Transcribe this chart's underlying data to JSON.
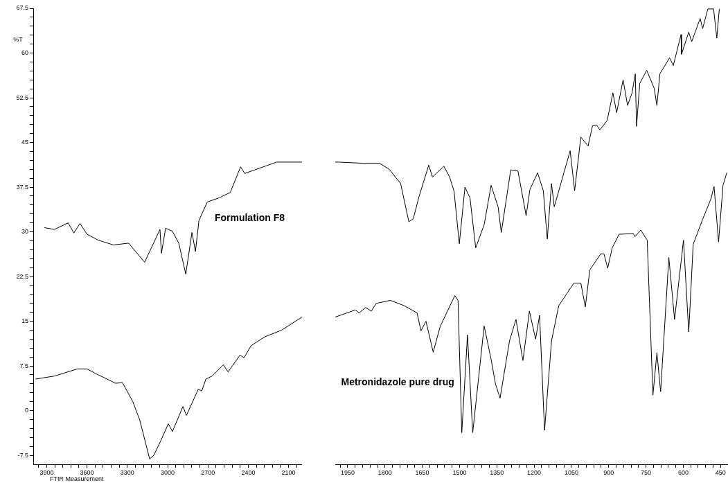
{
  "chart_data": [
    {
      "type": "line",
      "ylabel": "%T",
      "annotations": [
        "FTIR Measurement"
      ],
      "legend": false,
      "xlim": [
        4000,
        2000
      ],
      "ylim": [
        -9,
        67.5
      ],
      "xticks": [
        {
          "value": 3960,
          "label": null
        },
        3900,
        {
          "value": 3840,
          "label": null
        },
        {
          "value": 3780,
          "label": null
        },
        {
          "value": 3720,
          "label": null
        },
        {
          "value": 3660,
          "label": null
        },
        3600,
        {
          "value": 3540,
          "label": null
        },
        {
          "value": 3480,
          "label": null
        },
        {
          "value": 3420,
          "label": null
        },
        {
          "value": 3360,
          "label": null
        },
        3300,
        {
          "value": 3240,
          "label": null
        },
        {
          "value": 3180,
          "label": null
        },
        {
          "value": 3120,
          "label": null
        },
        {
          "value": 3060,
          "label": null
        },
        3000,
        {
          "value": 2940,
          "label": null
        },
        {
          "value": 2880,
          "label": null
        },
        {
          "value": 2820,
          "label": null
        },
        {
          "value": 2760,
          "label": null
        },
        2700,
        {
          "value": 2640,
          "label": null
        },
        {
          "value": 2580,
          "label": null
        },
        {
          "value": 2520,
          "label": null
        },
        {
          "value": 2460,
          "label": null
        },
        2400,
        {
          "value": 2340,
          "label": null
        },
        {
          "value": 2280,
          "label": null
        },
        {
          "value": 2220,
          "label": null
        },
        {
          "value": 2160,
          "label": null
        },
        2100,
        {
          "value": 2040,
          "label": null
        }
      ],
      "yticks": [
        -7.5,
        {
          "value": -6,
          "label": null
        },
        {
          "value": -4.5,
          "label": null
        },
        {
          "value": -3,
          "label": null
        },
        {
          "value": -1.5,
          "label": null
        },
        0,
        {
          "value": 1.5,
          "label": null
        },
        {
          "value": 3,
          "label": null
        },
        {
          "value": 4.5,
          "label": null
        },
        {
          "value": 6,
          "label": null
        },
        7.5,
        {
          "value": 9,
          "label": null
        },
        {
          "value": 10.5,
          "label": null
        },
        {
          "value": 12,
          "label": null
        },
        {
          "value": 13.5,
          "label": null
        },
        15,
        {
          "value": 16.5,
          "label": null
        },
        {
          "value": 18,
          "label": null
        },
        {
          "value": 19.5,
          "label": null
        },
        {
          "value": 21,
          "label": null
        },
        22.5,
        {
          "value": 24,
          "label": null
        },
        {
          "value": 25.5,
          "label": null
        },
        {
          "value": 27,
          "label": null
        },
        {
          "value": 28.5,
          "label": null
        },
        30,
        {
          "value": 31.5,
          "label": null
        },
        {
          "value": 33,
          "label": null
        },
        {
          "value": 34.5,
          "label": null
        },
        {
          "value": 36,
          "label": null
        },
        37.5,
        {
          "value": 39,
          "label": null
        },
        {
          "value": 40.5,
          "label": null
        },
        {
          "value": 42,
          "label": null
        },
        {
          "value": 43.5,
          "label": null
        },
        45,
        {
          "value": 46.5,
          "label": null
        },
        {
          "value": 48,
          "label": null
        },
        {
          "value": 49.5,
          "label": null
        },
        {
          "value": 51,
          "label": null
        },
        52.5,
        {
          "value": 54,
          "label": null
        },
        {
          "value": 55.5,
          "label": null
        },
        {
          "value": 57,
          "label": null
        },
        {
          "value": 58.5,
          "label": null
        },
        60,
        {
          "value": 61.5,
          "label": null
        },
        {
          "value": 63,
          "label": null
        },
        {
          "value": 64.5,
          "label": null
        },
        {
          "value": 66,
          "label": null
        },
        67.5
      ],
      "series": [
        {
          "name": "Formulation F8",
          "color": "#000000",
          "x": [
            3916,
            3843,
            3740,
            3698,
            3652,
            3600,
            3517,
            3403,
            3290,
            3171,
            3057,
            3046,
            3015,
            2964,
            2917,
            2896,
            2865,
            2819,
            2793,
            2767,
            2705,
            2617,
            2534,
            2457,
            2426,
            2188,
            2000
          ],
          "values": [
            30.7,
            30.4,
            31.5,
            29.8,
            31.4,
            29.6,
            28.6,
            27.8,
            28.1,
            24.9,
            30.4,
            26.4,
            30.6,
            30.1,
            28.1,
            26.0,
            22.9,
            29.9,
            26.7,
            31.9,
            35.0,
            35.7,
            36.6,
            40.9,
            39.8,
            41.7,
            41.7
          ]
        },
        {
          "color": "#000000",
          "x": [
            3983,
            3843,
            3672,
            3600,
            3533,
            3388,
            3336,
            3259,
            3207,
            3134,
            3103,
            3052,
            2995,
            2964,
            2886,
            2860,
            2772,
            2746,
            2715,
            2669,
            2586,
            2550,
            2462,
            2431,
            2379,
            2276,
            2152,
            2000
          ],
          "values": [
            5.3,
            5.8,
            7.0,
            7.0,
            6.2,
            4.6,
            4.7,
            1.5,
            -1.6,
            -8.1,
            -7.5,
            -5.1,
            -2.2,
            -3.5,
            0.7,
            -0.8,
            3.6,
            3.3,
            5.3,
            5.8,
            7.7,
            6.5,
            9.3,
            8.9,
            10.9,
            12.4,
            13.5,
            15.7
          ]
        }
      ]
    },
    {
      "type": "line",
      "legend": false,
      "tick_labels": "x",
      "xlim": [
        2000,
        420
      ],
      "ylim": [
        -9,
        67.5
      ],
      "xticks": [
        {
          "value": 1980,
          "label": null
        },
        1950,
        {
          "value": 1920,
          "label": null
        },
        {
          "value": 1890,
          "label": null
        },
        {
          "value": 1860,
          "label": null
        },
        {
          "value": 1830,
          "label": null
        },
        1800,
        {
          "value": 1770,
          "label": null
        },
        {
          "value": 1740,
          "label": null
        },
        {
          "value": 1710,
          "label": null
        },
        {
          "value": 1680,
          "label": null
        },
        1650,
        {
          "value": 1620,
          "label": null
        },
        {
          "value": 1590,
          "label": null
        },
        {
          "value": 1560,
          "label": null
        },
        {
          "value": 1530,
          "label": null
        },
        1500,
        {
          "value": 1470,
          "label": null
        },
        {
          "value": 1440,
          "label": null
        },
        {
          "value": 1410,
          "label": null
        },
        {
          "value": 1380,
          "label": null
        },
        1350,
        {
          "value": 1320,
          "label": null
        },
        {
          "value": 1290,
          "label": null
        },
        {
          "value": 1260,
          "label": null
        },
        {
          "value": 1230,
          "label": null
        },
        1200,
        {
          "value": 1170,
          "label": null
        },
        {
          "value": 1140,
          "label": null
        },
        {
          "value": 1110,
          "label": null
        },
        {
          "value": 1080,
          "label": null
        },
        1050,
        {
          "value": 1020,
          "label": null
        },
        {
          "value": 990,
          "label": null
        },
        {
          "value": 960,
          "label": null
        },
        {
          "value": 930,
          "label": null
        },
        900,
        {
          "value": 870,
          "label": null
        },
        {
          "value": 840,
          "label": null
        },
        {
          "value": 810,
          "label": null
        },
        {
          "value": 780,
          "label": null
        },
        750,
        {
          "value": 720,
          "label": null
        },
        {
          "value": 690,
          "label": null
        },
        {
          "value": 660,
          "label": null
        },
        {
          "value": 630,
          "label": null
        },
        600,
        {
          "value": 570,
          "label": null
        },
        {
          "value": 540,
          "label": null
        },
        {
          "value": 510,
          "label": null
        },
        {
          "value": 480,
          "label": null
        },
        450
      ],
      "series": [
        {
          "color": "#000000",
          "x": [
            2000,
            1988,
            1886,
            1822,
            1783,
            1737,
            1704,
            1686,
            1663,
            1624,
            1609,
            1563,
            1540,
            1522,
            1501,
            1478,
            1458,
            1435,
            1401,
            1373,
            1345,
            1332,
            1294,
            1265,
            1232,
            1217,
            1186,
            1163,
            1147,
            1130,
            1119,
            1055,
            1037,
            1012,
            983,
            965,
            948,
            935,
            906,
            883,
            868,
            842,
            824,
            806,
            793,
            788,
            775,
            747,
            717,
            706,
            694,
            655,
            640,
            609,
            607,
            578,
            566,
            532,
            522,
            501,
            478,
            465,
            455
          ],
          "values": [
            41.7,
            41.7,
            41.5,
            41.5,
            40.5,
            38.1,
            31.7,
            32.2,
            35.9,
            41.2,
            39.2,
            41.0,
            39.2,
            36.8,
            28.0,
            37.5,
            35.7,
            27.3,
            31.2,
            37.8,
            34.2,
            29.9,
            40.4,
            40.2,
            32.7,
            37.1,
            39.9,
            36.9,
            28.8,
            38.1,
            34.2,
            43.6,
            36.9,
            45.9,
            44.4,
            47.8,
            47.9,
            47.1,
            48.7,
            53.3,
            50.0,
            55.5,
            51.2,
            53.3,
            56.5,
            47.7,
            54.9,
            57.1,
            54.1,
            51.2,
            56.5,
            59.2,
            57.9,
            63.1,
            59.8,
            63.5,
            61.9,
            65.8,
            64.1,
            67.4,
            67.4,
            62.5,
            67.4
          ]
        },
        {
          "name": "Metronidazole pure drug",
          "color": "#000000",
          "x": [
            2000,
            1919,
            1904,
            1878,
            1855,
            1835,
            1778,
            1722,
            1671,
            1655,
            1635,
            1606,
            1578,
            1519,
            1506,
            1491,
            1468,
            1447,
            1401,
            1373,
            1355,
            1337,
            1299,
            1273,
            1245,
            1219,
            1194,
            1178,
            1158,
            1130,
            1101,
            1040,
            1012,
            994,
            976,
            932,
            919,
            904,
            886,
            858,
            801,
            794,
            771,
            745,
            722,
            706,
            691,
            658,
            635,
            599,
            578,
            560,
            522,
            489,
            476,
            458,
            440,
            425
          ],
          "values": [
            15.7,
            16.9,
            16.4,
            17.3,
            16.7,
            18.0,
            18.5,
            17.6,
            16.4,
            13.4,
            15.0,
            9.8,
            14.1,
            19.3,
            18.5,
            -3.7,
            12.7,
            -3.7,
            14.2,
            8.6,
            4.4,
            2.1,
            11.7,
            15.3,
            8.4,
            16.7,
            12.0,
            16.0,
            -3.3,
            11.7,
            17.6,
            21.4,
            21.4,
            17.4,
            23.6,
            26.3,
            26.3,
            23.9,
            27.3,
            29.6,
            29.7,
            29.2,
            30.3,
            28.6,
            2.6,
            9.7,
            3.2,
            25.7,
            15.3,
            28.6,
            13.2,
            27.9,
            32.1,
            35.5,
            37.6,
            28.3,
            37.8,
            39.9
          ]
        }
      ]
    }
  ]
}
